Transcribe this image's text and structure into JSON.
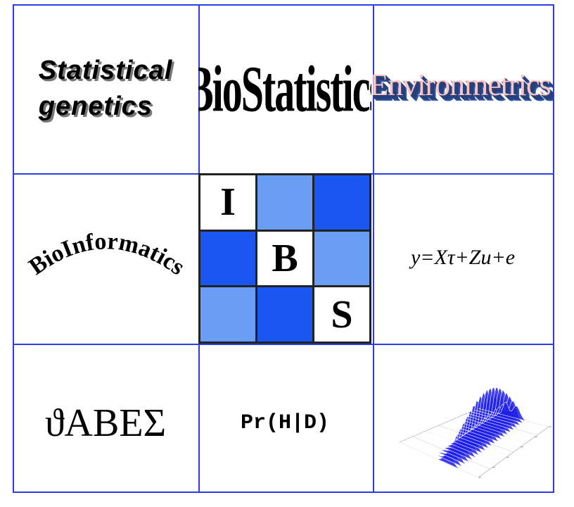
{
  "colors": {
    "grid_border": "#2b3fe0",
    "ibs_light": "#6a9df4",
    "ibs_dark": "#1a57f0",
    "ibs_white": "#ffffff"
  },
  "cells": {
    "statistical_genetics": {
      "line1": "Statistical",
      "line2": "genetics"
    },
    "biostatistics": "BioStatistics",
    "environmetrics": "Environmetrics",
    "bioinformatics": "BioInformatics",
    "formula": "y=Xτ+Zu+e",
    "greek": "ϑΑΒΕΣ",
    "probability": "Pr(H|D)"
  },
  "ibs_logo": {
    "squares": [
      {
        "letter": "I",
        "color": "#ffffff"
      },
      {
        "letter": "",
        "color": "#6a9df4"
      },
      {
        "letter": "",
        "color": "#1a57f0"
      },
      {
        "letter": "",
        "color": "#1a57f0"
      },
      {
        "letter": "B",
        "color": "#ffffff"
      },
      {
        "letter": "",
        "color": "#6a9df4"
      },
      {
        "letter": "",
        "color": "#6a9df4"
      },
      {
        "letter": "",
        "color": "#1a57f0"
      },
      {
        "letter": "S",
        "color": "#ffffff"
      }
    ]
  },
  "surface_plot": {
    "icon": "3d-density-surface-icon"
  }
}
